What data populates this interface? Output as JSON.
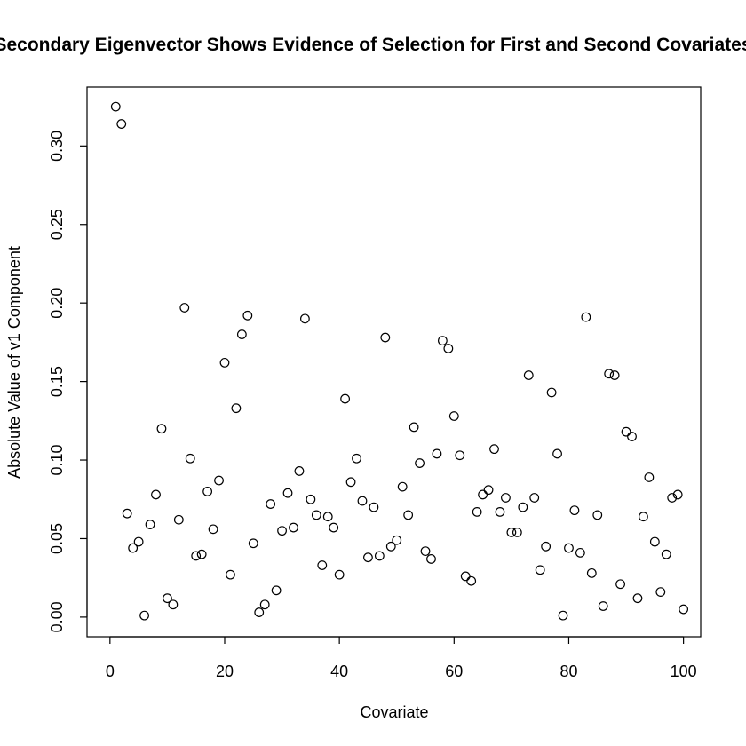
{
  "chart_data": {
    "type": "scatter",
    "title": "Secondary Eigenvector Shows Evidence of Selection for First and Second Covariates",
    "xlabel": "Covariate",
    "ylabel": "Absolute Value of v1 Component",
    "xlim": [
      -4,
      103
    ],
    "ylim": [
      -0.0125,
      0.3375
    ],
    "xticks": [
      0,
      20,
      40,
      60,
      80,
      100
    ],
    "xtick_labels": [
      "0",
      "20",
      "40",
      "60",
      "80",
      "100"
    ],
    "yticks": [
      0.0,
      0.05,
      0.1,
      0.15,
      0.2,
      0.25,
      0.3
    ],
    "ytick_labels": [
      "0.00",
      "0.05",
      "0.10",
      "0.15",
      "0.20",
      "0.25",
      "0.30"
    ],
    "grid": false,
    "legend": "none",
    "x": [
      1,
      2,
      3,
      4,
      5,
      6,
      7,
      8,
      9,
      10,
      11,
      12,
      13,
      14,
      15,
      16,
      17,
      18,
      19,
      20,
      21,
      22,
      23,
      24,
      25,
      26,
      27,
      28,
      29,
      30,
      31,
      32,
      33,
      34,
      35,
      36,
      37,
      38,
      39,
      40,
      41,
      42,
      43,
      44,
      45,
      46,
      47,
      48,
      49,
      50,
      51,
      52,
      53,
      54,
      55,
      56,
      57,
      58,
      59,
      60,
      61,
      62,
      63,
      64,
      65,
      66,
      67,
      68,
      69,
      70,
      71,
      72,
      73,
      74,
      75,
      76,
      77,
      78,
      79,
      80,
      81,
      82,
      83,
      84,
      85,
      86,
      87,
      88,
      89,
      90,
      91,
      92,
      93,
      94,
      95,
      96,
      97,
      98,
      99,
      100
    ],
    "y": [
      0.325,
      0.314,
      0.066,
      0.044,
      0.048,
      0.001,
      0.059,
      0.078,
      0.12,
      0.012,
      0.008,
      0.062,
      0.197,
      0.101,
      0.039,
      0.04,
      0.08,
      0.056,
      0.087,
      0.162,
      0.027,
      0.133,
      0.18,
      0.192,
      0.047,
      0.003,
      0.008,
      0.072,
      0.017,
      0.055,
      0.079,
      0.057,
      0.093,
      0.19,
      0.075,
      0.065,
      0.033,
      0.064,
      0.057,
      0.027,
      0.139,
      0.086,
      0.101,
      0.074,
      0.038,
      0.07,
      0.039,
      0.178,
      0.045,
      0.049,
      0.083,
      0.065,
      0.121,
      0.098,
      0.042,
      0.037,
      0.104,
      0.176,
      0.171,
      0.128,
      0.103,
      0.026,
      0.023,
      0.067,
      0.078,
      0.081,
      0.107,
      0.067,
      0.076,
      0.054,
      0.054,
      0.07,
      0.154,
      0.076,
      0.03,
      0.045,
      0.143,
      0.104,
      0.001,
      0.044,
      0.068,
      0.041,
      0.191,
      0.028,
      0.065,
      0.007,
      0.155,
      0.154,
      0.021,
      0.118,
      0.115,
      0.012,
      0.064,
      0.089,
      0.048,
      0.016,
      0.04,
      0.076,
      0.078,
      0.005
    ]
  }
}
